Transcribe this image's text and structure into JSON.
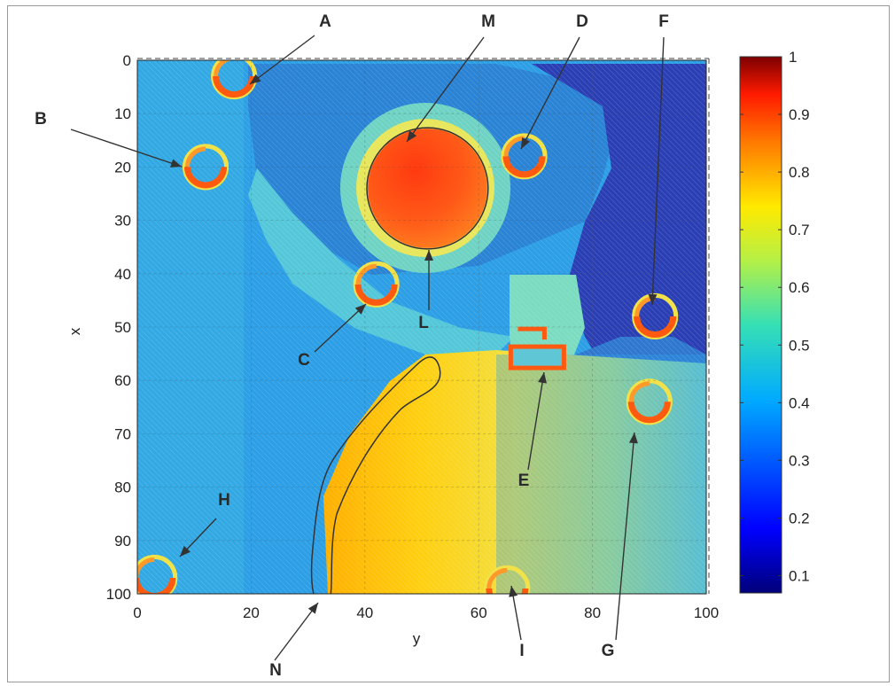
{
  "chart_data": {
    "type": "heatmap",
    "xlabel": "y",
    "ylabel": "x",
    "x_range": [
      0,
      100
    ],
    "y_range": [
      0,
      100
    ],
    "y_axis_inverted": true,
    "x_ticks": [
      "0",
      "20",
      "40",
      "60",
      "80",
      "100"
    ],
    "y_ticks": [
      "0",
      "10",
      "20",
      "30",
      "40",
      "50",
      "60",
      "70",
      "80",
      "90",
      "100"
    ],
    "grid": true,
    "colormap": "jet",
    "colorbar": {
      "range": [
        0.07,
        1.0
      ],
      "ticks": [
        "0.1",
        "0.2",
        "0.3",
        "0.4",
        "0.5",
        "0.6",
        "0.7",
        "0.8",
        "0.9",
        "1"
      ]
    },
    "background_value": 0.35,
    "features": [
      {
        "label": "M",
        "shape": "disc",
        "center_y": 51,
        "center_x": 24,
        "radius": 10.5,
        "value": 0.84
      },
      {
        "label": "L",
        "shape": "outline",
        "description": "circle",
        "center_y": 51,
        "center_x": 24,
        "radius": 10.5
      },
      {
        "label": "N",
        "shape": "outline",
        "description": "boundary of yellow region"
      },
      {
        "label": "A",
        "shape": "ring",
        "center_y": 17,
        "center_x": 3,
        "value": 0.9
      },
      {
        "label": "B",
        "shape": "ring",
        "center_y": 12,
        "center_x": 20,
        "value": 0.9
      },
      {
        "label": "C",
        "shape": "ring",
        "center_y": 42,
        "center_x": 42,
        "value": 0.9
      },
      {
        "label": "D",
        "shape": "ring",
        "center_y": 68,
        "center_x": 18,
        "value": 0.9
      },
      {
        "label": "E",
        "shape": "box",
        "center_y": 70,
        "center_x": 55,
        "value": 0.9
      },
      {
        "label": "F",
        "shape": "ring",
        "center_y": 91,
        "center_x": 48,
        "value": 0.9
      },
      {
        "label": "G",
        "shape": "ring",
        "center_y": 90,
        "center_x": 64,
        "value": 0.9
      },
      {
        "label": "H",
        "shape": "ring",
        "center_y": 3,
        "center_x": 97,
        "value": 0.9
      },
      {
        "label": "I",
        "shape": "ring",
        "center_y": 65,
        "center_x": 99,
        "value": 0.9
      }
    ],
    "annotations": [
      "A",
      "B",
      "C",
      "D",
      "E",
      "F",
      "G",
      "H",
      "I",
      "L",
      "M",
      "N"
    ]
  }
}
